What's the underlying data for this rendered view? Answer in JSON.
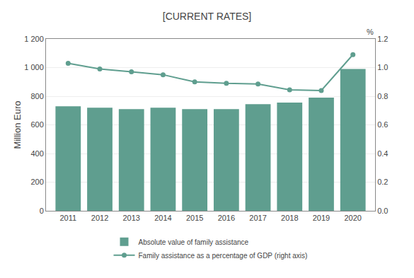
{
  "chart_data": {
    "type": "bar",
    "title": "[CURRENT RATES]",
    "x": [
      2011,
      2012,
      2013,
      2014,
      2015,
      2016,
      2017,
      2018,
      2019,
      2020
    ],
    "xlim": [
      2010.3,
      2020.7
    ],
    "xticks": [
      2011,
      2012,
      2013,
      2014,
      2015,
      2016,
      2017,
      2018,
      2019,
      2020
    ],
    "ylabel": "Million Euro",
    "y2label": "%",
    "ylim": [
      0,
      1200
    ],
    "yticks": [
      0,
      200,
      400,
      600,
      800,
      {
        "value": 1000,
        "label": "1 000"
      },
      {
        "value": 1200,
        "label": "1 200"
      }
    ],
    "y2lim": [
      0.0,
      1.2
    ],
    "y2ticks": [
      {
        "value": 0.0,
        "label": "0.0"
      },
      0.2,
      0.4,
      0.6,
      0.8,
      {
        "value": 1.0,
        "label": "1.0"
      },
      1.2
    ],
    "grid": true,
    "legend": "bottom",
    "series": [
      {
        "name": "Absolute value of family assistance",
        "type": "bar",
        "color": "#5f9e8f",
        "values": [
          730,
          720,
          710,
          720,
          710,
          710,
          745,
          755,
          790,
          990
        ]
      },
      {
        "name": "Family assistance as a percentage of GDP (right axis)",
        "type": "line",
        "axis": "y2",
        "color": "#5f9e8f",
        "marker": "circle",
        "values": [
          1.03,
          0.99,
          0.97,
          0.95,
          0.9,
          0.89,
          0.885,
          0.845,
          0.84,
          1.09
        ]
      }
    ]
  }
}
